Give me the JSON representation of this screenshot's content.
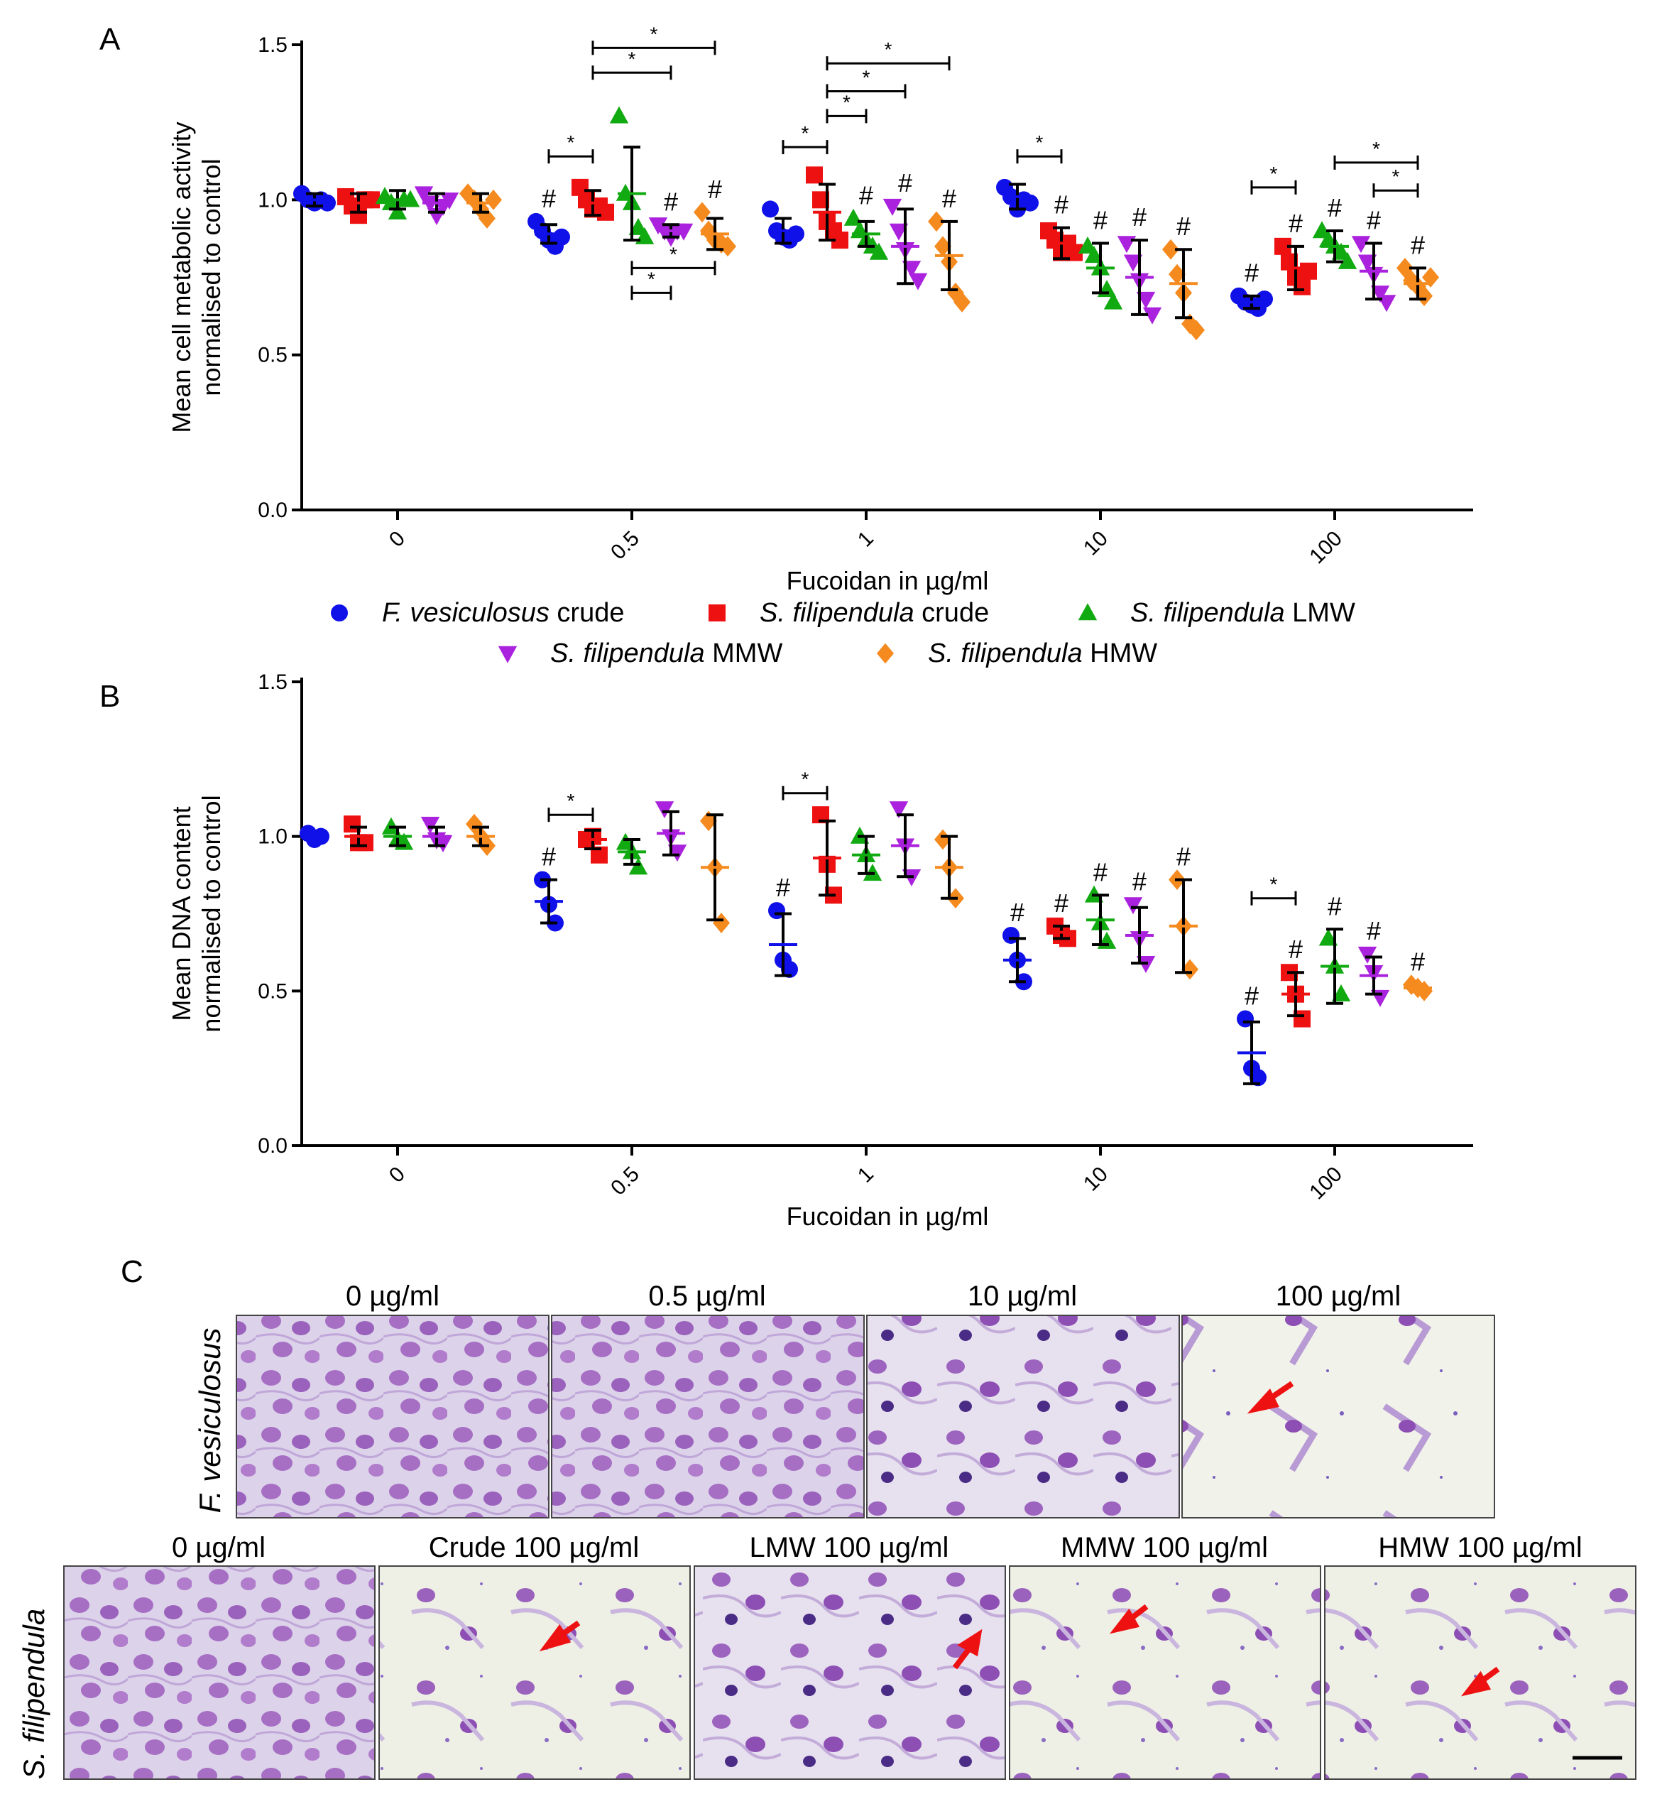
{
  "figure": {
    "panels": [
      "A",
      "B",
      "C"
    ],
    "legend": [
      {
        "italic": "F. vesiculosus",
        "rest": " crude",
        "color": "#1010e8",
        "marker": "circle"
      },
      {
        "italic": "S. filipendula",
        "rest": " crude",
        "color": "#ee1111",
        "marker": "square"
      },
      {
        "italic": "S. filipendula",
        "rest": " LMW",
        "color": "#11aa11",
        "marker": "triangle-up"
      },
      {
        "italic": "S. filipendula",
        "rest": " MMW",
        "color": "#aa22dd",
        "marker": "triangle-down"
      },
      {
        "italic": "S. filipendula",
        "rest": " HMW",
        "color": "#f58a1f",
        "marker": "diamond"
      }
    ],
    "micrographs": {
      "row1_label": "F. vesiculosus",
      "row1_titles": [
        "0 µg/ml",
        "0.5 µg/ml",
        "10 µg/ml",
        "100 µg/ml"
      ],
      "row2_label": "S. filipendula",
      "row2_titles": [
        "0 µg/ml",
        "Crude 100 µg/ml",
        "LMW 100 µg/ml",
        "MMW 100 µg/ml",
        "HMW 100 µg/ml"
      ]
    }
  },
  "chart_data": [
    {
      "type": "scatter",
      "panel": "A",
      "xlabel": "Fucoidan in µg/ml",
      "ylabel": [
        "Mean cell metabolic activity",
        "normalised to control"
      ],
      "categories": [
        "0",
        "0.5",
        "1",
        "10",
        "100"
      ],
      "ylim": [
        0,
        1.5
      ],
      "yticks": [
        "0.0",
        "0.5",
        "1.0",
        "1.5"
      ],
      "series": [
        {
          "name": "F. vesiculosus crude",
          "mean": [
            1.0,
            0.89,
            0.9,
            1.01,
            0.67
          ],
          "sd": [
            0.02,
            0.03,
            0.04,
            0.04,
            0.02
          ],
          "points": [
            [
              1.02,
              1.0,
              0.99,
              1.0,
              0.99
            ],
            [
              0.93,
              0.9,
              0.87,
              0.85,
              0.88
            ],
            [
              0.97,
              0.9,
              0.88,
              0.87,
              0.89
            ],
            [
              1.04,
              1.01,
              0.97,
              1.0,
              0.99
            ],
            [
              0.69,
              0.67,
              0.66,
              0.65,
              0.68
            ]
          ]
        },
        {
          "name": "S. filipendula crude",
          "mean": [
            0.99,
            0.99,
            0.96,
            0.86,
            0.78
          ],
          "sd": [
            0.03,
            0.04,
            0.09,
            0.05,
            0.07
          ],
          "points": [
            [
              1.01,
              0.98,
              0.95,
              1.0,
              1.0
            ],
            [
              1.04,
              1.0,
              0.97,
              0.98,
              0.96
            ],
            [
              1.08,
              1.0,
              0.93,
              0.9,
              0.87
            ],
            [
              0.9,
              0.87,
              0.83,
              0.86,
              0.83
            ],
            [
              0.85,
              0.8,
              0.75,
              0.72,
              0.77
            ]
          ]
        },
        {
          "name": "S. filipendula LMW",
          "mean": [
            1.0,
            1.02,
            0.89,
            0.78,
            0.85
          ],
          "sd": [
            0.03,
            0.15,
            0.04,
            0.08,
            0.05
          ],
          "points": [
            [
              1.01,
              0.99,
              0.96,
              1.0,
              1.0
            ],
            [
              1.27,
              1.02,
              0.99,
              0.91,
              0.88
            ],
            [
              0.94,
              0.9,
              0.87,
              0.85,
              0.83
            ],
            [
              0.85,
              0.82,
              0.78,
              0.71,
              0.67
            ],
            [
              0.9,
              0.87,
              0.85,
              0.83,
              0.8
            ]
          ]
        },
        {
          "name": "S. filipendula MMW",
          "mean": [
            0.99,
            0.9,
            0.85,
            0.75,
            0.77
          ],
          "sd": [
            0.03,
            0.02,
            0.12,
            0.12,
            0.09
          ],
          "points": [
            [
              1.02,
              0.99,
              0.95,
              0.98,
              1.0
            ],
            [
              0.92,
              0.9,
              0.88,
              0.9,
              0.9
            ],
            [
              0.98,
              0.9,
              0.84,
              0.78,
              0.74
            ],
            [
              0.86,
              0.8,
              0.74,
              0.68,
              0.63
            ],
            [
              0.86,
              0.8,
              0.76,
              0.7,
              0.67
            ]
          ]
        },
        {
          "name": "S. filipendula HMW",
          "mean": [
            0.99,
            0.89,
            0.82,
            0.73,
            0.73
          ],
          "sd": [
            0.03,
            0.05,
            0.11,
            0.11,
            0.05
          ],
          "points": [
            [
              1.02,
              1.0,
              0.97,
              0.94,
              1.0
            ],
            [
              0.96,
              0.9,
              0.87,
              0.86,
              0.85
            ],
            [
              0.93,
              0.85,
              0.8,
              0.7,
              0.67
            ],
            [
              0.84,
              0.76,
              0.7,
              0.6,
              0.58
            ],
            [
              0.78,
              0.74,
              0.72,
              0.69,
              0.75
            ]
          ]
        }
      ],
      "hash_marks": [
        [
          1,
          0
        ],
        [
          1,
          3
        ],
        [
          1,
          4
        ],
        [
          2,
          2
        ],
        [
          2,
          3
        ],
        [
          2,
          4
        ],
        [
          3,
          1
        ],
        [
          3,
          2
        ],
        [
          3,
          3
        ],
        [
          3,
          4
        ],
        [
          4,
          0
        ],
        [
          4,
          1
        ],
        [
          4,
          2
        ],
        [
          4,
          3
        ],
        [
          4,
          4
        ]
      ],
      "significance_brackets": [
        {
          "cat": 1,
          "from": 0,
          "to": 1,
          "y": 1.14
        },
        {
          "cat": 1,
          "from": 1,
          "to": 4,
          "y": 1.49
        },
        {
          "cat": 1,
          "from": 1,
          "to": 3,
          "y": 1.41
        },
        {
          "cat": 1,
          "from": 2,
          "to": 4,
          "y": 0.78
        },
        {
          "cat": 1,
          "from": 2,
          "to": 3,
          "y": 0.7
        },
        {
          "cat": 2,
          "from": 0,
          "to": 1,
          "y": 1.17
        },
        {
          "cat": 2,
          "from": 1,
          "to": 2,
          "y": 1.27
        },
        {
          "cat": 2,
          "from": 1,
          "to": 3,
          "y": 1.35
        },
        {
          "cat": 2,
          "from": 1,
          "to": 4,
          "y": 1.44
        },
        {
          "cat": 3,
          "from": 0,
          "to": 1,
          "y": 1.14
        },
        {
          "cat": 4,
          "from": 0,
          "to": 1,
          "y": 1.04
        },
        {
          "cat": 4,
          "from": 2,
          "to": 4,
          "y": 1.12
        },
        {
          "cat": 4,
          "from": 3,
          "to": 4,
          "y": 1.03
        }
      ]
    },
    {
      "type": "scatter",
      "panel": "B",
      "xlabel": "Fucoidan in µg/ml",
      "ylabel": [
        "Mean DNA content",
        "normalised to control"
      ],
      "categories": [
        "0",
        "0.5",
        "1",
        "10",
        "100"
      ],
      "ylim": [
        0,
        1.5
      ],
      "yticks": [
        "0.0",
        "0.5",
        "1.0",
        "1.5"
      ],
      "series": [
        {
          "name": "F. vesiculosus crude",
          "mean": [
            1.0,
            0.79,
            0.65,
            0.6,
            0.3
          ],
          "sd": [
            0.01,
            0.07,
            0.1,
            0.07,
            0.1
          ],
          "points": [
            [
              1.01,
              0.99,
              1.0
            ],
            [
              0.86,
              0.78,
              0.72
            ],
            [
              0.76,
              0.6,
              0.57
            ],
            [
              0.68,
              0.6,
              0.53
            ],
            [
              0.41,
              0.25,
              0.22
            ]
          ]
        },
        {
          "name": "S. filipendula crude",
          "mean": [
            1.0,
            0.99,
            0.93,
            0.69,
            0.49
          ],
          "sd": [
            0.03,
            0.03,
            0.12,
            0.02,
            0.07
          ],
          "points": [
            [
              1.04,
              0.98,
              0.98
            ],
            [
              0.99,
              1.0,
              0.94
            ],
            [
              1.07,
              0.91,
              0.81
            ],
            [
              0.71,
              0.68,
              0.67
            ],
            [
              0.56,
              0.49,
              0.41
            ]
          ]
        },
        {
          "name": "S. filipendula LMW",
          "mean": [
            1.0,
            0.95,
            0.94,
            0.73,
            0.58
          ],
          "sd": [
            0.03,
            0.04,
            0.06,
            0.08,
            0.12
          ],
          "points": [
            [
              1.03,
              0.99,
              0.98
            ],
            [
              0.98,
              0.95,
              0.9
            ],
            [
              1.0,
              0.94,
              0.88
            ],
            [
              0.81,
              0.72,
              0.66
            ],
            [
              0.67,
              0.58,
              0.49
            ]
          ]
        },
        {
          "name": "S. filipendula MMW",
          "mean": [
            1.0,
            1.01,
            0.97,
            0.68,
            0.55
          ],
          "sd": [
            0.03,
            0.07,
            0.1,
            0.09,
            0.06
          ],
          "points": [
            [
              1.04,
              0.99,
              0.98
            ],
            [
              1.09,
              1.0,
              0.95
            ],
            [
              1.09,
              0.97,
              0.87
            ],
            [
              0.78,
              0.67,
              0.59
            ],
            [
              0.62,
              0.56,
              0.48
            ]
          ]
        },
        {
          "name": "S. filipendula HMW",
          "mean": [
            1.0,
            0.9,
            0.9,
            0.71,
            0.51
          ],
          "sd": [
            0.03,
            0.17,
            0.1,
            0.15,
            0.01
          ],
          "points": [
            [
              1.04,
              1.0,
              0.97
            ],
            [
              1.05,
              0.9,
              0.72
            ],
            [
              0.99,
              0.9,
              0.8
            ],
            [
              0.86,
              0.71,
              0.57
            ],
            [
              0.52,
              0.51,
              0.5
            ]
          ]
        }
      ],
      "hash_marks": [
        [
          1,
          0
        ],
        [
          2,
          0
        ],
        [
          3,
          0
        ],
        [
          3,
          1
        ],
        [
          3,
          2
        ],
        [
          3,
          3
        ],
        [
          3,
          4
        ],
        [
          4,
          0
        ],
        [
          4,
          1
        ],
        [
          4,
          2
        ],
        [
          4,
          3
        ],
        [
          4,
          4
        ]
      ],
      "significance_brackets": [
        {
          "cat": 1,
          "from": 0,
          "to": 1,
          "y": 1.07
        },
        {
          "cat": 2,
          "from": 0,
          "to": 1,
          "y": 1.14
        },
        {
          "cat": 4,
          "from": 0,
          "to": 1,
          "y": 0.8
        }
      ]
    }
  ]
}
